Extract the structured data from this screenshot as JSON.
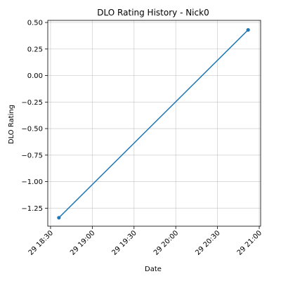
{
  "chart_data": {
    "type": "line",
    "title": "DLO Rating History - Nick0",
    "xlabel": "Date",
    "ylabel": "DLO Rating",
    "x_type": "datetime",
    "x_ticks": [
      "29 18:30",
      "29 19:00",
      "29 19:30",
      "29 20:00",
      "29 20:30",
      "29 21:00"
    ],
    "x_tick_values": [
      "2000-01-29T18:30",
      "2000-01-29T19:00",
      "2000-01-29T19:30",
      "2000-01-29T20:00",
      "2000-01-29T20:30",
      "2000-01-29T21:00"
    ],
    "xlim": [
      "2000-01-29T18:28",
      "2000-01-29T21:01"
    ],
    "y_ticks": [
      "0.50",
      "0.25",
      "0.00",
      "−0.25",
      "−0.50",
      "−0.75",
      "−1.00",
      "−1.25"
    ],
    "y_tick_values": [
      0.5,
      0.25,
      0.0,
      -0.25,
      -0.5,
      -0.75,
      -1.0,
      -1.25
    ],
    "ylim": [
      -1.42,
      0.52
    ],
    "grid": true,
    "series": [
      {
        "color": "#1f77b4",
        "marker": "circle",
        "points": [
          {
            "x": "2000-01-29T18:36",
            "y": -1.34
          },
          {
            "x": "2000-01-29T20:52",
            "y": 0.43
          }
        ]
      }
    ]
  }
}
